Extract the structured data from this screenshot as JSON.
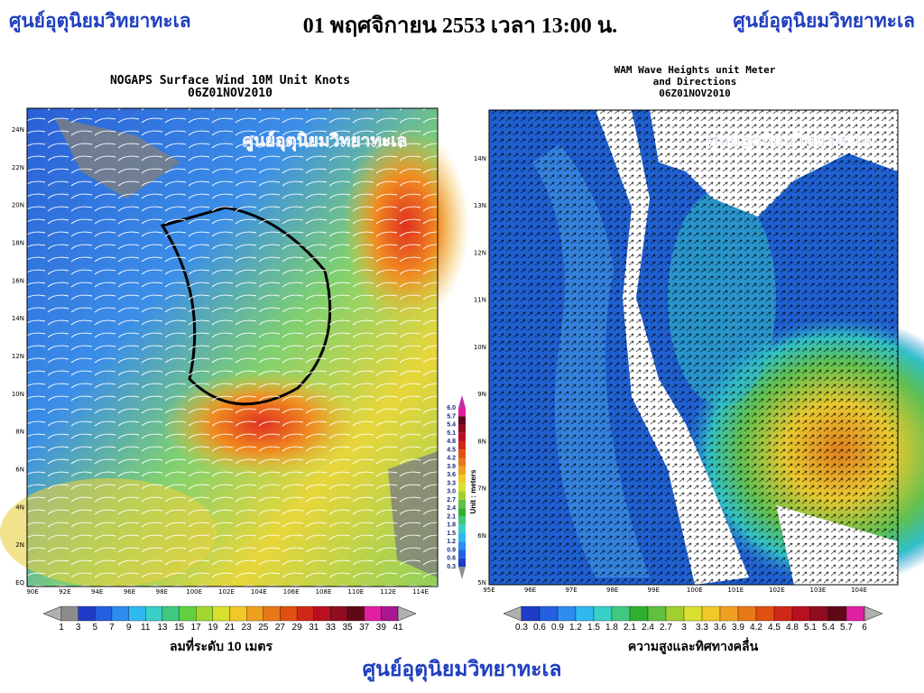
{
  "header": {
    "left": "ศูนย์อุตุนิยมวิทยาทะเล",
    "title": "01 พฤศจิกายน 2553 เวลา 13:00 น.",
    "right": "ศูนย์อุตุนิยมวิทยาทะเล"
  },
  "wind_map": {
    "title": "NOGAPS Surface Wind 10M Unit Knots",
    "time": "06Z01NOV2010",
    "watermark": "ศูนย์อุตุนิยมวิทยาทะเล",
    "lat_labels": [
      "24N",
      "22N",
      "20N",
      "18N",
      "16N",
      "14N",
      "12N",
      "10N",
      "8N",
      "6N",
      "4N",
      "2N",
      "EQ"
    ],
    "lon_labels": [
      "90E",
      "92E",
      "94E",
      "96E",
      "98E",
      "100E",
      "102E",
      "104E",
      "106E",
      "108E",
      "110E",
      "112E",
      "114E"
    ],
    "scale_labels": [
      "1",
      "3",
      "5",
      "7",
      "9",
      "11",
      "13",
      "15",
      "17",
      "19",
      "21",
      "23",
      "25",
      "27",
      "29",
      "31",
      "33",
      "35",
      "37",
      "39",
      "41"
    ],
    "caption": "ลมที่ระดับ 10 เมตร"
  },
  "wave_scale_vertical": {
    "labels": [
      "6.0",
      "5.7",
      "5.4",
      "5.1",
      "4.8",
      "4.5",
      "4.2",
      "3.9",
      "3.6",
      "3.3",
      "3.0",
      "2.7",
      "2.4",
      "2.1",
      "1.8",
      "1.5",
      "1.2",
      "0.9",
      "0.6",
      "0.3"
    ],
    "unit": "Unit : meters"
  },
  "wave_map": {
    "title_lines": [
      "WAM Wave Heights unit Meter",
      "and Directions",
      "06Z01NOV2010"
    ],
    "watermark": "ศูนย์อุตุนิยมวิทยาทะเล",
    "lat_labels": [
      "14N",
      "13N",
      "12N",
      "11N",
      "10N",
      "9N",
      "8N",
      "7N",
      "6N",
      "5N"
    ],
    "lon_labels": [
      "95E",
      "96E",
      "97E",
      "98E",
      "99E",
      "100E",
      "101E",
      "102E",
      "103E",
      "104E"
    ],
    "scale_labels": [
      "0.3",
      "0.6",
      "0.9",
      "1.2",
      "1.5",
      "1.8",
      "2.1",
      "2.4",
      "2.7",
      "3",
      "3.3",
      "3.6",
      "3.9",
      "4.2",
      "4.5",
      "4.8",
      "5.1",
      "5.4",
      "5.7",
      "6"
    ],
    "caption": "ความสูงและทิศทางคลื่น"
  },
  "footer": "ศูนย์อุตุนิยมวิทยาทะเล"
}
